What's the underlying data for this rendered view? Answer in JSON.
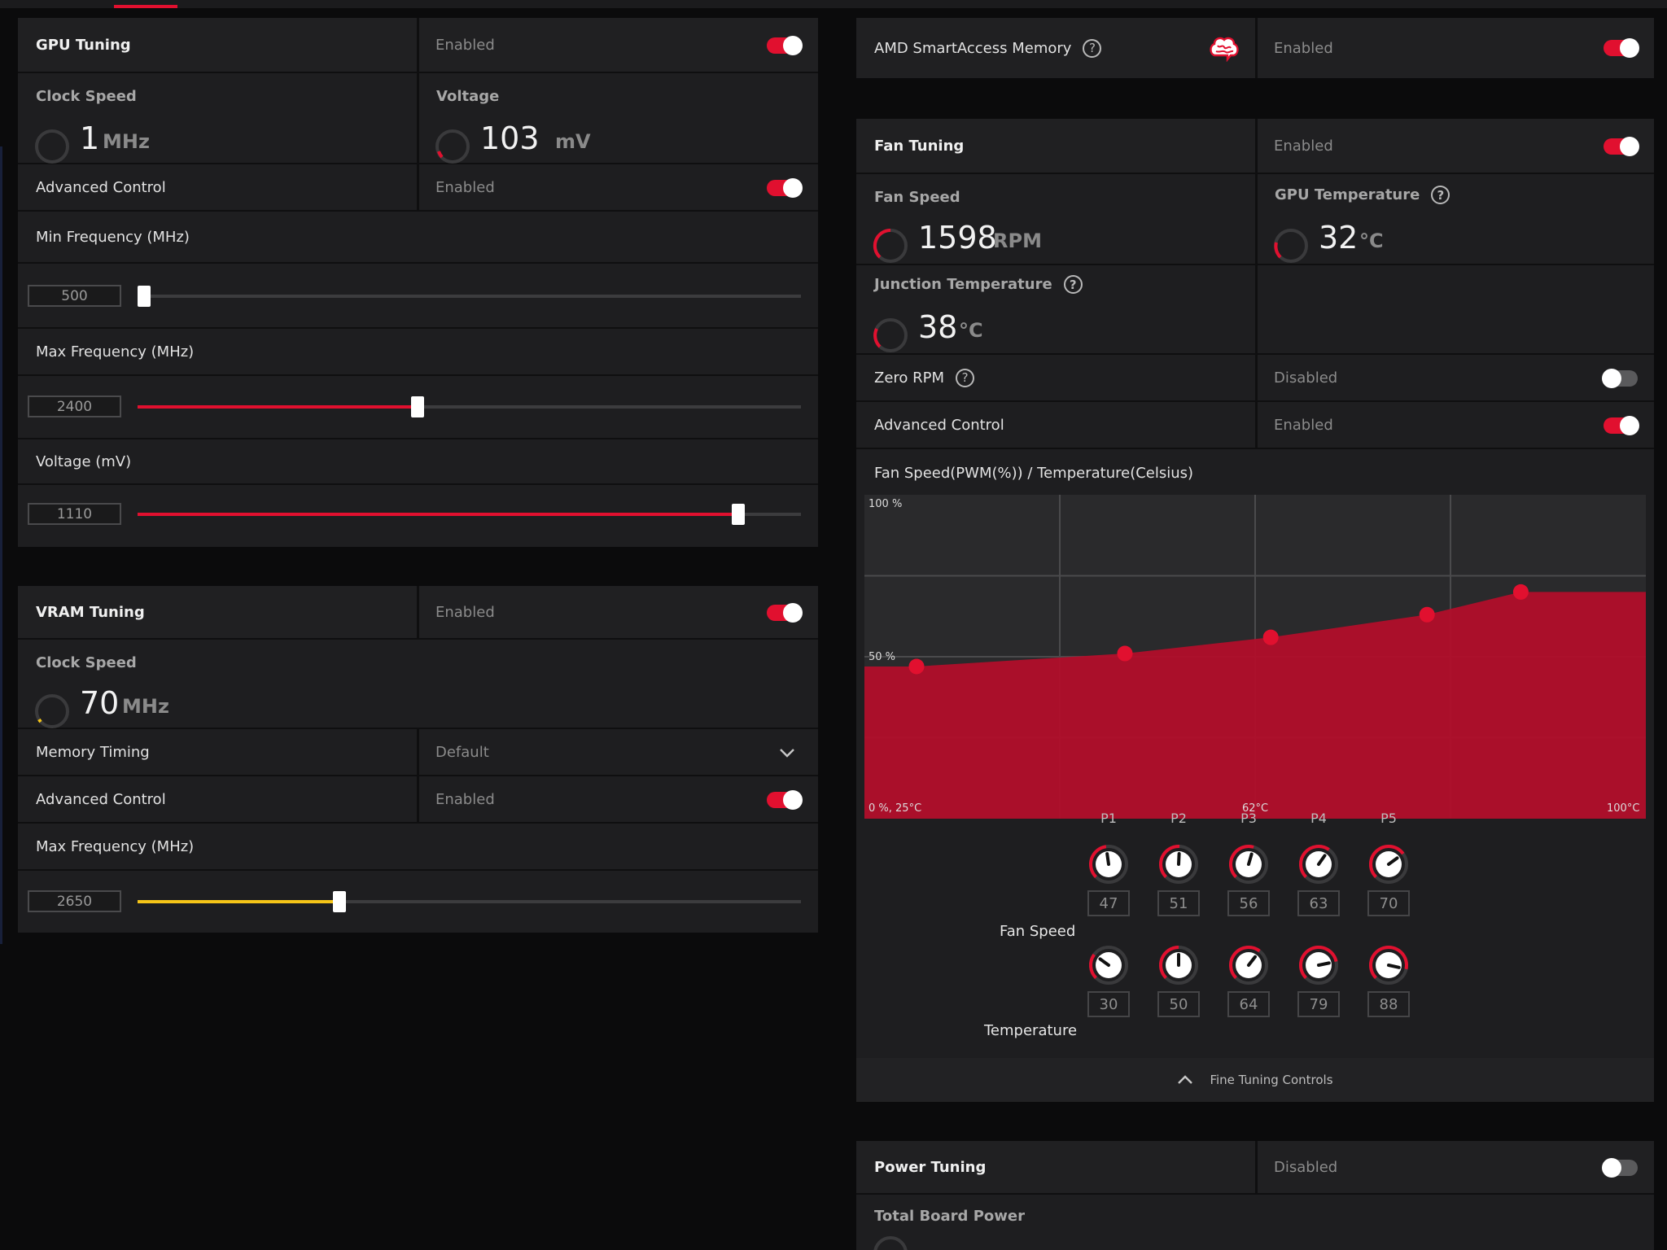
{
  "colors": {
    "accent": "#e1102f",
    "vram_slider": "#f5c518",
    "panel": "#1e1e20"
  },
  "gpu_tuning": {
    "title": "GPU Tuning",
    "status": "Enabled",
    "enabled": true,
    "clock": {
      "title": "Clock Speed",
      "value": "1",
      "unit": "MHz"
    },
    "voltage": {
      "title": "Voltage",
      "value": "103",
      "unit": "mV"
    },
    "advanced": {
      "label": "Advanced Control",
      "status": "Enabled",
      "enabled": true
    },
    "min_freq": {
      "label": "Min Frequency (MHz)",
      "value": "500",
      "fraction": 0.01
    },
    "max_freq": {
      "label": "Max Frequency (MHz)",
      "value": "2400",
      "fraction": 0.42
    },
    "voltage_slider": {
      "label": "Voltage (mV)",
      "value": "1110",
      "fraction": 0.905
    }
  },
  "vram_tuning": {
    "title": "VRAM Tuning",
    "status": "Enabled",
    "enabled": true,
    "clock": {
      "title": "Clock Speed",
      "value": "70",
      "unit": "MHz"
    },
    "memory_timing": {
      "label": "Memory Timing",
      "value": "Default"
    },
    "advanced": {
      "label": "Advanced Control",
      "status": "Enabled",
      "enabled": true
    },
    "max_freq": {
      "label": "Max Frequency (MHz)",
      "value": "2650",
      "fraction": 0.305
    }
  },
  "sam": {
    "label": "AMD SmartAccess Memory",
    "status": "Enabled",
    "enabled": true,
    "icon": "brain-icon"
  },
  "fan_tuning": {
    "title": "Fan Tuning",
    "status": "Enabled",
    "enabled": true,
    "fan_speed": {
      "title": "Fan Speed",
      "value": "1598",
      "unit": "RPM"
    },
    "gpu_temp": {
      "title": "GPU Temperature",
      "value": "32",
      "unit": "°C"
    },
    "junction_temp": {
      "title": "Junction Temperature",
      "value": "38",
      "unit": "°C"
    },
    "zero_rpm": {
      "label": "Zero RPM",
      "status": "Disabled",
      "enabled": false
    },
    "advanced": {
      "label": "Advanced Control",
      "status": "Enabled",
      "enabled": true
    },
    "curve_title": "Fan Speed(PWM(%)) / Temperature(Celsius)",
    "fine_tuning_label": "Fine Tuning Controls",
    "fan_speed_label": "Fan Speed",
    "temperature_label": "Temperature",
    "points": [
      {
        "name": "P1",
        "speed": "47",
        "temp": "30"
      },
      {
        "name": "P2",
        "speed": "51",
        "temp": "50"
      },
      {
        "name": "P3",
        "speed": "56",
        "temp": "64"
      },
      {
        "name": "P4",
        "speed": "63",
        "temp": "79"
      },
      {
        "name": "P5",
        "speed": "70",
        "temp": "88"
      }
    ]
  },
  "chart_data": {
    "type": "area",
    "title": "Fan Speed(PWM(%)) / Temperature(Celsius)",
    "xlabel": "",
    "ylabel": "",
    "tick_labels": {
      "y_top": "100 %",
      "y_mid": "50 %",
      "x_start": "0 %, 25°C",
      "x_mid": "62°C",
      "x_end": "100°C"
    },
    "xlim": [
      25,
      100
    ],
    "ylim": [
      0,
      100
    ],
    "x": [
      30,
      50,
      64,
      79,
      88
    ],
    "y": [
      47,
      51,
      56,
      63,
      70
    ],
    "series": [
      {
        "x": [
          30,
          50,
          64,
          79,
          88
        ],
        "values": [
          47,
          51,
          56,
          63,
          70
        ]
      }
    ],
    "grid": true
  },
  "power_tuning": {
    "title": "Power Tuning",
    "status": "Disabled",
    "enabled": false,
    "board_power": {
      "title": "Total Board Power"
    }
  }
}
